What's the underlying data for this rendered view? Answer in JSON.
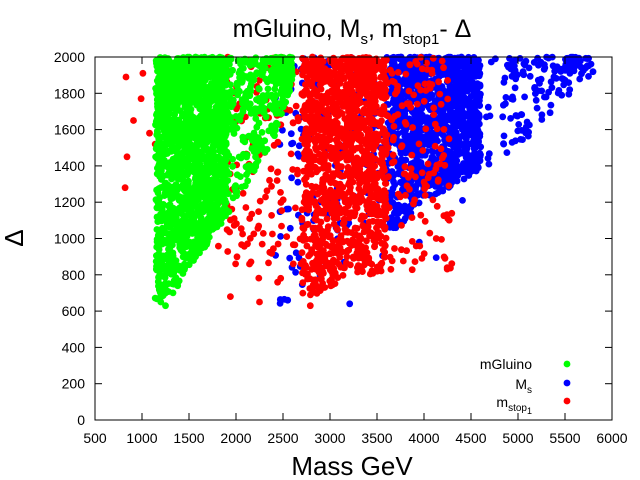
{
  "chart_data": {
    "type": "scatter",
    "title": {
      "main": "mGluino, M",
      "sub1": "s",
      "mid": ", m",
      "sub2": "stop",
      "subsub": "1",
      "tail": "- Δ"
    },
    "xlabel": "Mass GeV",
    "ylabel": "Δ",
    "xlim": [
      500,
      6000
    ],
    "ylim": [
      0,
      2000
    ],
    "xticks": [
      500,
      1000,
      1500,
      2000,
      2500,
      3000,
      3500,
      4000,
      4500,
      5000,
      5500,
      6000
    ],
    "yticks": [
      0,
      200,
      400,
      600,
      800,
      1000,
      1200,
      1400,
      1600,
      1800,
      2000
    ],
    "grid": false,
    "legend_position": "bottom-right",
    "series": [
      {
        "name": "M_s",
        "legend": {
          "main": "M",
          "sub": "s"
        },
        "color": "#0000ff",
        "generator": {
          "x_min": 2400,
          "x_max": 5800,
          "y_min": 620,
          "y_max": 2000,
          "count": 1500,
          "front": [
            [
              2400,
              620
            ],
            [
              2700,
              700
            ],
            [
              3000,
              850
            ],
            [
              3300,
              950
            ],
            [
              3700,
              1050
            ],
            [
              4000,
              1200
            ],
            [
              4500,
              1350
            ],
            [
              5000,
              1500
            ],
            [
              5800,
              1900
            ]
          ],
          "dense_x": [
            3600,
            4600
          ]
        },
        "points": [
          [
            4130,
            895
          ],
          [
            3560,
            905
          ],
          [
            3210,
            640
          ],
          [
            3600,
            1380
          ],
          [
            3150,
            870
          ],
          [
            2960,
            860
          ],
          [
            4690,
            1410
          ],
          [
            4260,
            1480
          ],
          [
            4850,
            1860
          ],
          [
            4550,
            1700
          ],
          [
            5520,
            1960
          ],
          [
            5600,
            1950
          ],
          [
            5720,
            1940
          ],
          [
            4930,
            1770
          ],
          [
            5070,
            1780
          ],
          [
            4410,
            1210
          ],
          [
            4760,
            1990
          ],
          [
            4260,
            1990
          ],
          [
            2550,
            660
          ],
          [
            3950,
            980
          ]
        ]
      },
      {
        "name": "m_stop1",
        "legend": {
          "main": "m",
          "sub": "stop",
          "subsub": "1"
        },
        "color": "#ff0000",
        "generator": {
          "x_min": 1800,
          "x_max": 4300,
          "y_min": 640,
          "y_max": 2000,
          "count": 1600,
          "front": [
            [
              1800,
              900
            ],
            [
              2000,
              850
            ],
            [
              2300,
              750
            ],
            [
              2600,
              650
            ],
            [
              2900,
              700
            ],
            [
              3200,
              800
            ]
          ],
          "dense_x": [
            2700,
            3600
          ]
        },
        "points": [
          [
            820,
            1280
          ],
          [
            840,
            1450
          ],
          [
            830,
            1890
          ],
          [
            910,
            1650
          ],
          [
            990,
            1770
          ],
          [
            1010,
            1910
          ],
          [
            1080,
            1580
          ],
          [
            1140,
            1520
          ],
          [
            1700,
            1050
          ],
          [
            1940,
            680
          ],
          [
            2250,
            650
          ],
          [
            2790,
            630
          ],
          [
            2610,
            860
          ],
          [
            3420,
            1980
          ],
          [
            3460,
            1860
          ],
          [
            2920,
            1940
          ]
        ]
      },
      {
        "name": "mGluino",
        "legend": {
          "main": "mGluino"
        },
        "color": "#00ff00",
        "generator": {
          "x_min": 1140,
          "x_max": 2600,
          "y_min": 630,
          "y_max": 2000,
          "count": 2200,
          "front": [
            [
              1140,
              630
            ],
            [
              1200,
              660
            ],
            [
              1300,
              700
            ],
            [
              1450,
              800
            ],
            [
              1600,
              900
            ],
            [
              1800,
              1050
            ],
            [
              2000,
              1200
            ],
            [
              2200,
              1350
            ],
            [
              2400,
              1550
            ],
            [
              2600,
              1850
            ]
          ],
          "dense_x": [
            1150,
            1900
          ]
        },
        "points": [
          [
            1200,
            650
          ],
          [
            1250,
            630
          ],
          [
            1330,
            700
          ],
          [
            1380,
            740
          ],
          [
            1650,
            1090
          ],
          [
            1880,
            1150
          ],
          [
            2450,
            1700
          ],
          [
            2500,
            1880
          ],
          [
            2600,
            1900
          ]
        ]
      }
    ]
  }
}
